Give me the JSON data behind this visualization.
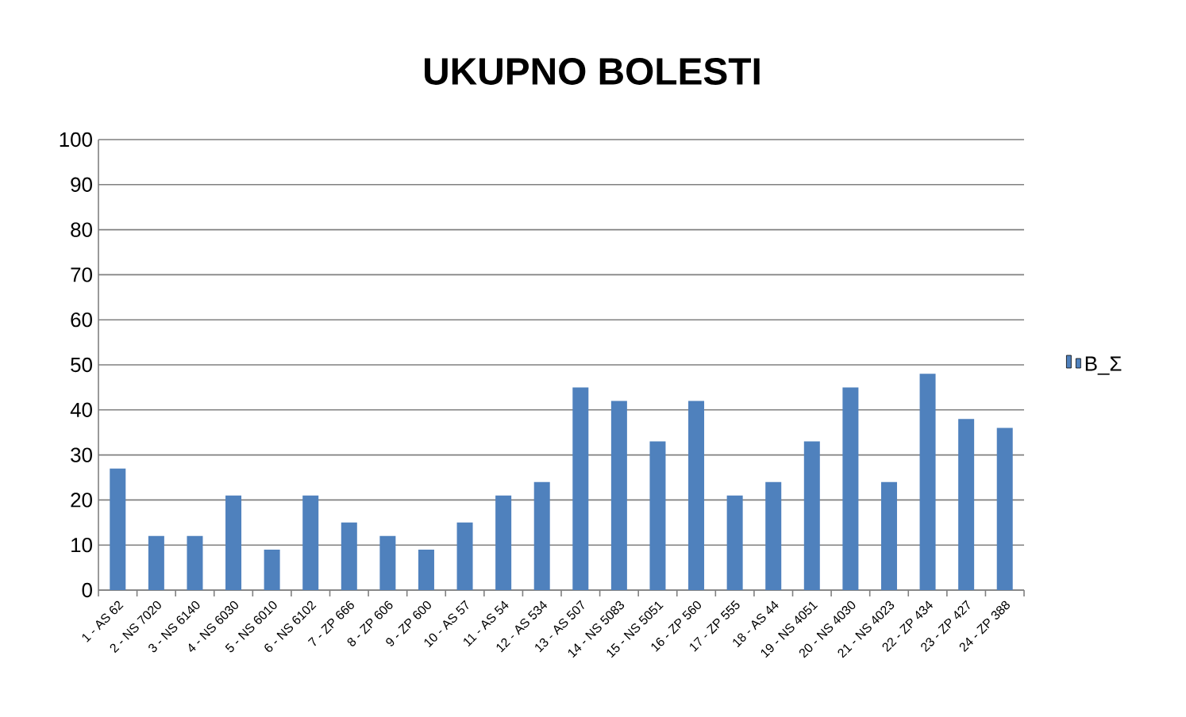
{
  "chart_data": {
    "type": "bar",
    "title": "UKUPNO BOLESTI",
    "categories": [
      "1 - AS 62",
      "2 - NS 7020",
      "3 - NS 6140",
      "4 - NS 6030",
      "5 - NS 6010",
      "6 - NS 6102",
      "7 - ZP 666",
      "8 - ZP 606",
      "9 - ZP 600",
      "10 - AS 57",
      "11 - AS 54",
      "12 - AS 534",
      "13 - AS 507",
      "14 - NS 5083",
      "15 - NS 5051",
      "16 - ZP 560",
      "17 - ZP 555",
      "18 - AS 44",
      "19 - NS 4051",
      "20 - NS 4030",
      "21 - NS 4023",
      "22 - ZP 434",
      "23 - ZP 427",
      "24 - ZP 388"
    ],
    "series": [
      {
        "name": "B_Σ",
        "color": "#4f81bd",
        "values": [
          27,
          12,
          12,
          21,
          9,
          21,
          15,
          12,
          9,
          15,
          21,
          24,
          45,
          42,
          33,
          42,
          21,
          24,
          33,
          45,
          24,
          48,
          38,
          36
        ]
      }
    ],
    "ylim": [
      0,
      100
    ],
    "yticks": [
      0,
      10,
      20,
      30,
      40,
      50,
      60,
      70,
      80,
      90,
      100
    ],
    "grid": "y",
    "legend": "right"
  }
}
